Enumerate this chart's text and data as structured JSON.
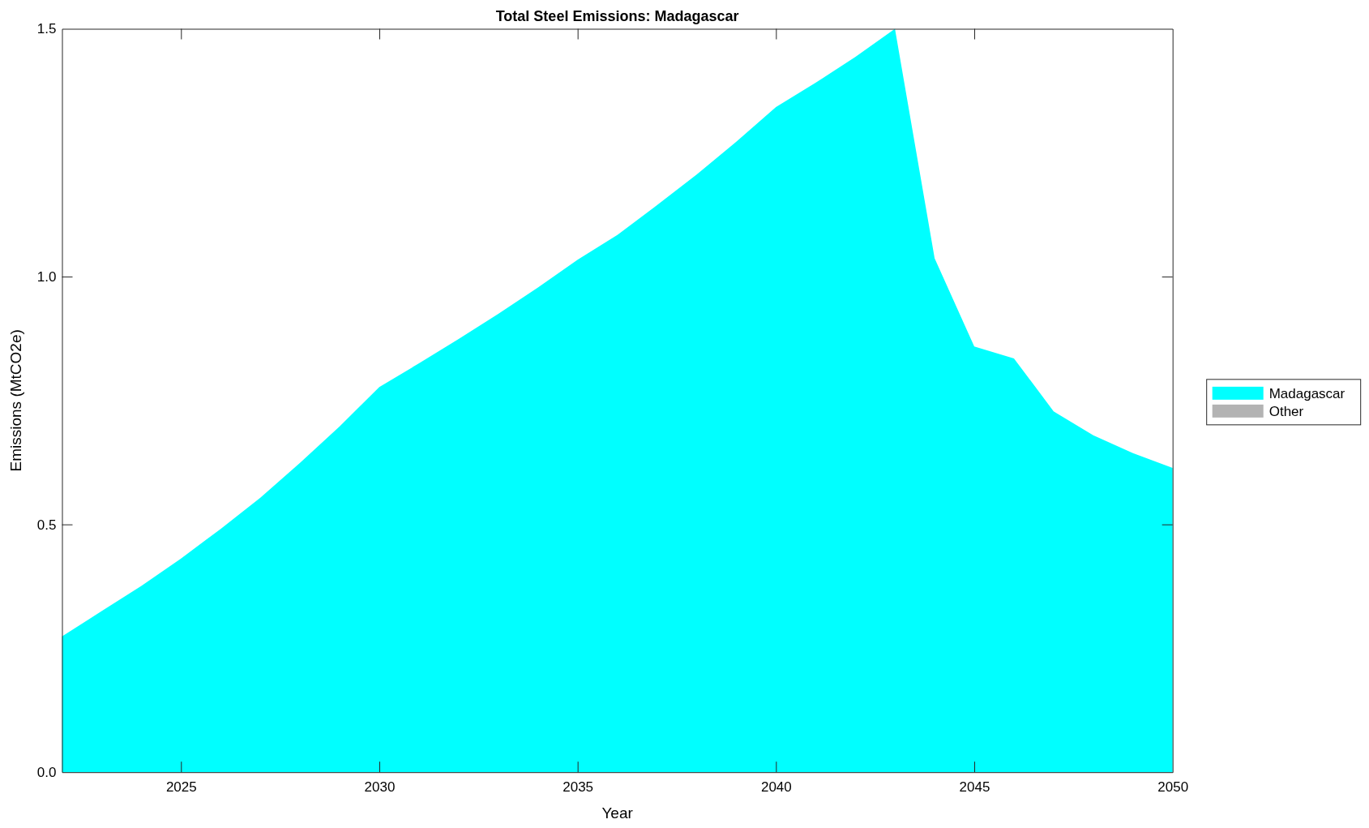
{
  "chart_data": {
    "type": "area",
    "title": "Total Steel Emissions: Madagascar",
    "xlabel": "Year",
    "ylabel": "Emissions (MtCO2e)",
    "x": [
      2022,
      2023,
      2024,
      2025,
      2026,
      2027,
      2028,
      2029,
      2030,
      2031,
      2032,
      2033,
      2034,
      2035,
      2036,
      2037,
      2038,
      2039,
      2040,
      2041,
      2042,
      2043,
      2044,
      2045,
      2046,
      2047,
      2048,
      2049,
      2050
    ],
    "series": [
      {
        "name": "Madagascar",
        "color": "#00ffff",
        "values": [
          0.274,
          0.325,
          0.376,
          0.431,
          0.491,
          0.554,
          0.624,
          0.698,
          0.777,
          0.825,
          0.874,
          0.925,
          0.978,
          1.034,
          1.084,
          1.144,
          1.206,
          1.272,
          1.342,
          1.391,
          1.443,
          1.5,
          1.037,
          0.859,
          0.835,
          0.728,
          0.68,
          0.644,
          0.614
        ]
      },
      {
        "name": "Other",
        "color": "#b3b3b3",
        "values": [
          null,
          null,
          null,
          null,
          null,
          null,
          null,
          null,
          null,
          null,
          null,
          null,
          null,
          null,
          null,
          null,
          null,
          null,
          null,
          null,
          null,
          null,
          null,
          null,
          null,
          null,
          null,
          null,
          null
        ]
      }
    ],
    "xlim": [
      2022,
      2050
    ],
    "xticks": [
      2025,
      2030,
      2035,
      2040,
      2045,
      2050
    ],
    "ylim": [
      0,
      1.5
    ],
    "yticks": [
      {
        "value": 0,
        "label": "0.0"
      },
      {
        "value": 0.5,
        "label": "0.5"
      },
      {
        "value": 1,
        "label": "1.0"
      },
      {
        "value": 1.5,
        "label": "1.5"
      }
    ],
    "grid": false,
    "legend": "right"
  }
}
